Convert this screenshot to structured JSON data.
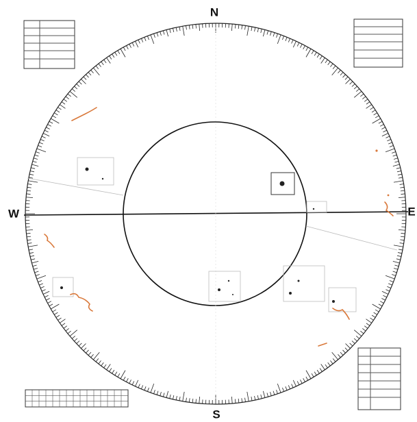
{
  "labels": {
    "north": "N",
    "south": "S",
    "west": "W",
    "east": "E"
  }
}
